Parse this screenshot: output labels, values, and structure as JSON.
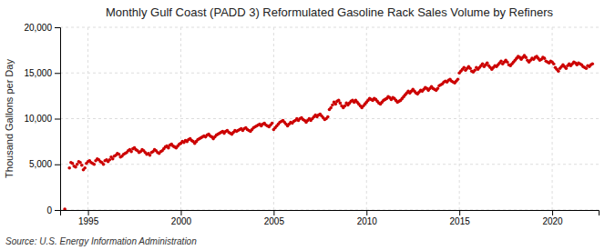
{
  "chart_data": {
    "type": "scatter",
    "title": "Monthly Gulf Coast (PADD 3) Reformulated Gasoline Rack Sales Volume by Refiners",
    "ylabel": "Thousand Gallons per Day",
    "annotations": [
      "Source: U.S. Energy Information Administration"
    ],
    "color": "#CC0000",
    "grid": true,
    "xlim": [
      1993.5,
      2022.5
    ],
    "ylim": [
      0,
      20000
    ],
    "xticks": [
      1995,
      2000,
      2005,
      2010,
      2015,
      2020
    ],
    "yticks": [
      0,
      {
        "value": 5000,
        "label": "5,000"
      },
      {
        "value": 10000,
        "label": "10,000"
      },
      {
        "value": 15000,
        "label": "15,000"
      },
      {
        "value": 20000,
        "label": "20,000"
      }
    ],
    "x": [
      1993.75,
      1994,
      1994.083,
      1994.167,
      1994.25,
      1994.333,
      1994.417,
      1994.5,
      1994.583,
      1994.667,
      1994.75,
      1994.833,
      1994.917,
      1995,
      1995.083,
      1995.167,
      1995.25,
      1995.333,
      1995.417,
      1995.5,
      1995.583,
      1995.667,
      1995.75,
      1995.833,
      1995.917,
      1996,
      1996.083,
      1996.167,
      1996.25,
      1996.333,
      1996.417,
      1996.5,
      1996.583,
      1996.667,
      1996.75,
      1996.833,
      1996.917,
      1997,
      1997.083,
      1997.167,
      1997.25,
      1997.333,
      1997.417,
      1997.5,
      1997.583,
      1997.667,
      1997.75,
      1997.833,
      1997.917,
      1998,
      1998.083,
      1998.167,
      1998.25,
      1998.333,
      1998.417,
      1998.5,
      1998.583,
      1998.667,
      1998.75,
      1998.833,
      1998.917,
      1999,
      1999.083,
      1999.167,
      1999.25,
      1999.333,
      1999.417,
      1999.5,
      1999.583,
      1999.667,
      1999.75,
      1999.833,
      1999.917,
      2000,
      2000.083,
      2000.167,
      2000.25,
      2000.333,
      2000.417,
      2000.5,
      2000.583,
      2000.667,
      2000.75,
      2000.833,
      2000.917,
      2001,
      2001.083,
      2001.167,
      2001.25,
      2001.333,
      2001.417,
      2001.5,
      2001.583,
      2001.667,
      2001.75,
      2001.833,
      2001.917,
      2002,
      2002.083,
      2002.167,
      2002.25,
      2002.333,
      2002.417,
      2002.5,
      2002.583,
      2002.667,
      2002.75,
      2002.833,
      2002.917,
      2003,
      2003.083,
      2003.167,
      2003.25,
      2003.333,
      2003.417,
      2003.5,
      2003.583,
      2003.667,
      2003.75,
      2003.833,
      2003.917,
      2004,
      2004.083,
      2004.167,
      2004.25,
      2004.333,
      2004.417,
      2004.5,
      2004.583,
      2004.667,
      2004.75,
      2004.833,
      2004.917,
      2005,
      2005.083,
      2005.167,
      2005.25,
      2005.333,
      2005.417,
      2005.5,
      2005.583,
      2005.667,
      2005.75,
      2005.833,
      2005.917,
      2006,
      2006.083,
      2006.167,
      2006.25,
      2006.333,
      2006.417,
      2006.5,
      2006.583,
      2006.667,
      2006.75,
      2006.833,
      2006.917,
      2007,
      2007.083,
      2007.167,
      2007.25,
      2007.333,
      2007.417,
      2007.5,
      2007.583,
      2007.667,
      2007.75,
      2007.833,
      2007.917,
      2008,
      2008.083,
      2008.167,
      2008.25,
      2008.333,
      2008.417,
      2008.5,
      2008.583,
      2008.667,
      2008.75,
      2008.833,
      2008.917,
      2009,
      2009.083,
      2009.167,
      2009.25,
      2009.333,
      2009.417,
      2009.5,
      2009.583,
      2009.667,
      2009.75,
      2009.833,
      2009.917,
      2010,
      2010.083,
      2010.167,
      2010.25,
      2010.333,
      2010.417,
      2010.5,
      2010.583,
      2010.667,
      2010.75,
      2010.833,
      2010.917,
      2011,
      2011.083,
      2011.167,
      2011.25,
      2011.333,
      2011.417,
      2011.5,
      2011.583,
      2011.667,
      2011.75,
      2011.833,
      2011.917,
      2012,
      2012.083,
      2012.167,
      2012.25,
      2012.333,
      2012.417,
      2012.5,
      2012.583,
      2012.667,
      2012.75,
      2012.833,
      2012.917,
      2013,
      2013.083,
      2013.167,
      2013.25,
      2013.333,
      2013.417,
      2013.5,
      2013.583,
      2013.667,
      2013.75,
      2013.833,
      2013.917,
      2014,
      2014.083,
      2014.167,
      2014.25,
      2014.333,
      2014.417,
      2014.5,
      2014.583,
      2014.667,
      2014.75,
      2014.833,
      2014.917,
      2015,
      2015.083,
      2015.167,
      2015.25,
      2015.333,
      2015.417,
      2015.5,
      2015.583,
      2015.667,
      2015.75,
      2015.833,
      2015.917,
      2016,
      2016.083,
      2016.167,
      2016.25,
      2016.333,
      2016.417,
      2016.5,
      2016.583,
      2016.667,
      2016.75,
      2016.833,
      2016.917,
      2017,
      2017.083,
      2017.167,
      2017.25,
      2017.333,
      2017.417,
      2017.5,
      2017.583,
      2017.667,
      2017.75,
      2017.833,
      2017.917,
      2018,
      2018.083,
      2018.167,
      2018.25,
      2018.333,
      2018.417,
      2018.5,
      2018.583,
      2018.667,
      2018.75,
      2018.833,
      2018.917,
      2019,
      2019.083,
      2019.167,
      2019.25,
      2019.333,
      2019.417,
      2019.5,
      2019.583,
      2019.667,
      2019.75,
      2019.833,
      2019.917,
      2020,
      2020.083,
      2020.167,
      2020.25,
      2020.333,
      2020.417,
      2020.5,
      2020.583,
      2020.667,
      2020.75,
      2020.833,
      2020.917,
      2021,
      2021.083,
      2021.167,
      2021.25,
      2021.333,
      2021.417,
      2021.5,
      2021.583,
      2021.667,
      2021.75,
      2021.833,
      2021.917,
      2022,
      2022.083,
      2022.167
    ],
    "values": [
      100,
      4600,
      5200,
      5100,
      4800,
      4700,
      5000,
      5300,
      5200,
      4900,
      4400,
      4600,
      5100,
      5300,
      5400,
      5200,
      5100,
      5000,
      5400,
      5600,
      5500,
      5300,
      5200,
      5000,
      5400,
      5500,
      5300,
      5500,
      5800,
      5600,
      5900,
      6000,
      6200,
      6100,
      5800,
      5900,
      6100,
      6200,
      6300,
      6500,
      6600,
      6400,
      6700,
      6800,
      6600,
      6500,
      6300,
      6400,
      6600,
      6500,
      6300,
      6100,
      6200,
      6000,
      6300,
      6400,
      6600,
      6500,
      6300,
      6200,
      6400,
      6500,
      6700,
      6900,
      7000,
      6800,
      7100,
      7200,
      7000,
      6900,
      6800,
      7000,
      7200,
      7300,
      7500,
      7400,
      7600,
      7500,
      7700,
      7800,
      7600,
      7500,
      7300,
      7500,
      7700,
      7800,
      7900,
      8000,
      8100,
      8000,
      8200,
      8300,
      8100,
      8000,
      7800,
      8000,
      8200,
      8300,
      8400,
      8500,
      8600,
      8400,
      8600,
      8700,
      8500,
      8400,
      8300,
      8500,
      8700,
      8600,
      8700,
      8800,
      8900,
      8700,
      8900,
      9000,
      8800,
      8700,
      8600,
      8800,
      9000,
      9100,
      9200,
      9300,
      9400,
      9200,
      9400,
      9500,
      9300,
      9200,
      9100,
      9300,
      9500,
      8800,
      9000,
      9200,
      9400,
      9600,
      9700,
      9800,
      9600,
      9400,
      9200,
      9400,
      9600,
      9500,
      9700,
      9800,
      10000,
      9800,
      10000,
      10100,
      9900,
      9800,
      9600,
      9800,
      10000,
      9800,
      10000,
      10200,
      10400,
      10200,
      10400,
      10500,
      10300,
      10100,
      9900,
      10000,
      10200,
      11000,
      11200,
      11500,
      11800,
      11600,
      11900,
      12000,
      11700,
      11400,
      11200,
      11400,
      11700,
      11500,
      11700,
      11900,
      12000,
      11800,
      12000,
      11800,
      11600,
      11400,
      11200,
      11400,
      11600,
      11800,
      12000,
      12200,
      12100,
      12000,
      12200,
      12100,
      11900,
      11700,
      11600,
      11800,
      12000,
      12100,
      12200,
      12400,
      12300,
      12100,
      12300,
      12200,
      12000,
      11800,
      11900,
      12000,
      12200,
      12400,
      12600,
      12800,
      13000,
      12800,
      13000,
      13200,
      13000,
      12800,
      12700,
      12900,
      13100,
      13000,
      13200,
      13400,
      13300,
      13100,
      13300,
      13500,
      13300,
      13200,
      13100,
      13300,
      13600,
      13700,
      13800,
      14000,
      14100,
      14000,
      14200,
      14300,
      14100,
      14000,
      13900,
      14100,
      14300,
      15000,
      15200,
      15400,
      15600,
      15300,
      15500,
      15700,
      15500,
      15200,
      15100,
      15300,
      15600,
      15400,
      15600,
      15800,
      16000,
      15700,
      15900,
      16100,
      15800,
      15600,
      15400,
      15600,
      15800,
      15700,
      15900,
      16100,
      16300,
      16000,
      16200,
      16400,
      16200,
      15900,
      15800,
      16000,
      16200,
      16400,
      16600,
      16800,
      16700,
      16500,
      16700,
      16900,
      16700,
      16400,
      16200,
      16400,
      16600,
      16500,
      16700,
      16800,
      16600,
      16400,
      16500,
      16700,
      16600,
      16300,
      16200,
      16100,
      16300,
      16200,
      16000,
      15600,
      15400,
      15200,
      15500,
      15700,
      15900,
      15700,
      15500,
      15800,
      16000,
      15800,
      16000,
      16200,
      16100,
      15900,
      16100,
      16000,
      15900,
      15700,
      15600,
      15500,
      15800,
      15700,
      15900,
      16000
    ]
  }
}
